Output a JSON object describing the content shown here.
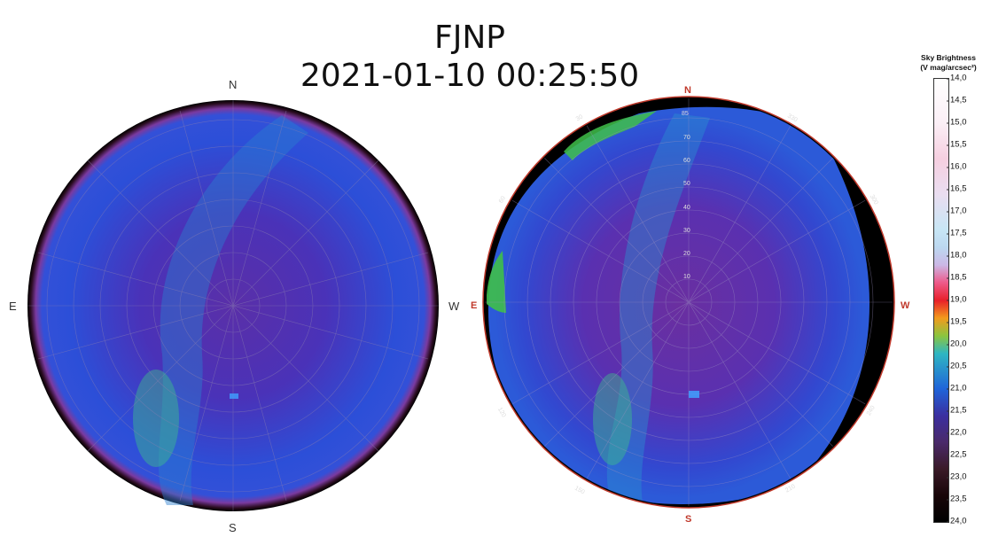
{
  "title": {
    "station": "FJNP",
    "datetime": "2021-01-10 00:25:50"
  },
  "left_map": {
    "north": "N",
    "south": "S",
    "east": "E",
    "west": "W"
  },
  "right_map": {
    "north": "N",
    "south": "S",
    "east": "E",
    "west": "W",
    "altitude_labels": [
      "85",
      "70",
      "60",
      "50",
      "40",
      "30",
      "20",
      "10"
    ],
    "azimuth_labels": [
      "30",
      "60",
      "120",
      "150",
      "210",
      "240",
      "300",
      "330"
    ]
  },
  "colorbar": {
    "title_line1": "Sky Brightness",
    "title_line2": "(V mag/arcsec²)",
    "ticks": [
      "14,0",
      "14,5",
      "15,0",
      "15,5",
      "16,0",
      "16,5",
      "17,0",
      "17,5",
      "18,0",
      "18,5",
      "19,0",
      "19,5",
      "20,0",
      "20,5",
      "21,0",
      "21,5",
      "22,0",
      "22,5",
      "23,0",
      "23,5",
      "24,0"
    ]
  },
  "colors": {
    "sky_blue": "#2c4fd8",
    "sky_purple": "#5a2fa8",
    "milky_way": "#2aa6c8",
    "horizon_green": "#3fbf4a"
  }
}
